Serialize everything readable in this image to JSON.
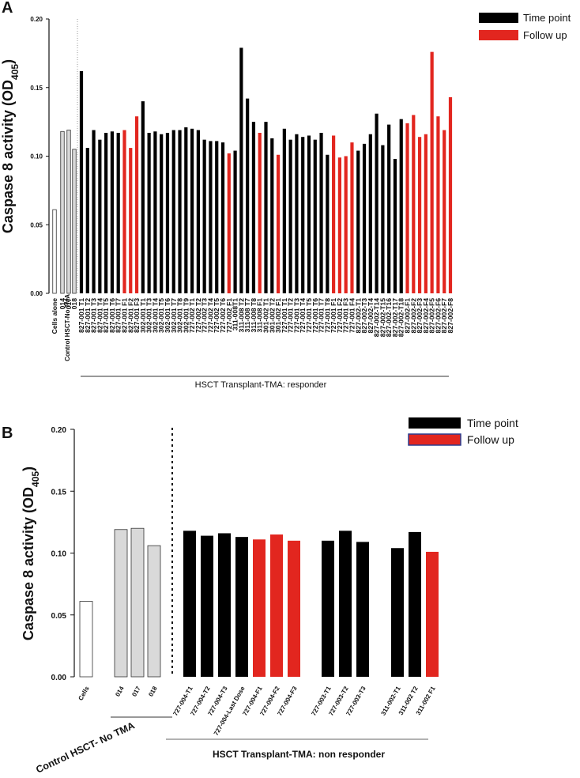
{
  "colors": {
    "time_point": "#000000",
    "follow_up": "#e2261f",
    "control": "#d9d9d9",
    "cells": "#ffffff"
  },
  "chart_data": [
    {
      "panel": "A",
      "type": "bar",
      "ylabel": "Caspase 8 activity (OD405)",
      "ylim": [
        0,
        0.2
      ],
      "yticks": [
        "0.00",
        "0.05",
        "0.10",
        "0.15",
        "0.20"
      ],
      "legend": [
        {
          "label": "Time point",
          "color": "#000000"
        },
        {
          "label": "Follow up",
          "color": "#e2261f"
        }
      ],
      "legend_position": "top-right",
      "group_labels": {
        "control": "Control HSCT-No TMA",
        "transplant": "HSCT Transplant-TMA: responder"
      },
      "bars": [
        {
          "label": "Cells alone",
          "value": 0.061,
          "kind": "cells"
        },
        {
          "label": "014",
          "value": 0.118,
          "kind": "control"
        },
        {
          "label": "017",
          "value": 0.119,
          "kind": "control"
        },
        {
          "label": "018",
          "value": 0.105,
          "kind": "control"
        },
        {
          "label": "827-001 T1",
          "value": 0.162,
          "kind": "time"
        },
        {
          "label": "827-001 T2",
          "value": 0.106,
          "kind": "time"
        },
        {
          "label": "827-001 T3",
          "value": 0.119,
          "kind": "time"
        },
        {
          "label": "827-001 T4",
          "value": 0.112,
          "kind": "time"
        },
        {
          "label": "827-001 T5",
          "value": 0.117,
          "kind": "time"
        },
        {
          "label": "827-001 T6",
          "value": 0.118,
          "kind": "time"
        },
        {
          "label": "827-001 T7",
          "value": 0.117,
          "kind": "time"
        },
        {
          "label": "827-001 F1",
          "value": 0.119,
          "kind": "follow"
        },
        {
          "label": "827-001 F2",
          "value": 0.106,
          "kind": "follow"
        },
        {
          "label": "827-001 F3",
          "value": 0.129,
          "kind": "follow"
        },
        {
          "label": "302-001 T1",
          "value": 0.14,
          "kind": "time"
        },
        {
          "label": "302-001 T3",
          "value": 0.117,
          "kind": "time"
        },
        {
          "label": "302-001 T4",
          "value": 0.118,
          "kind": "time"
        },
        {
          "label": "302-001 T5",
          "value": 0.116,
          "kind": "time"
        },
        {
          "label": "302-001 T6",
          "value": 0.117,
          "kind": "time"
        },
        {
          "label": "302-001 T7",
          "value": 0.119,
          "kind": "time"
        },
        {
          "label": "302-001 T8",
          "value": 0.119,
          "kind": "time"
        },
        {
          "label": "302-001 T9",
          "value": 0.121,
          "kind": "time"
        },
        {
          "label": "727-002 T1",
          "value": 0.12,
          "kind": "time"
        },
        {
          "label": "727-002 T2",
          "value": 0.119,
          "kind": "time"
        },
        {
          "label": "727-002 T3",
          "value": 0.112,
          "kind": "time"
        },
        {
          "label": "727-002 T4",
          "value": 0.111,
          "kind": "time"
        },
        {
          "label": "727-002 T5",
          "value": 0.111,
          "kind": "time"
        },
        {
          "label": "727-002 T6",
          "value": 0.11,
          "kind": "time"
        },
        {
          "label": "727-002 F1",
          "value": 0.102,
          "kind": "follow"
        },
        {
          "label": "311-008T1",
          "value": 0.104,
          "kind": "time"
        },
        {
          "label": "311-008 T2",
          "value": 0.179,
          "kind": "time"
        },
        {
          "label": "311-008 T7",
          "value": 0.142,
          "kind": "time"
        },
        {
          "label": "311-008 T8",
          "value": 0.125,
          "kind": "time"
        },
        {
          "label": "311-008 F1",
          "value": 0.117,
          "kind": "follow"
        },
        {
          "label": "301-002 T1",
          "value": 0.125,
          "kind": "time"
        },
        {
          "label": "301-002 T2",
          "value": 0.113,
          "kind": "time"
        },
        {
          "label": "301-002 F1",
          "value": 0.101,
          "kind": "follow"
        },
        {
          "label": "727-001 T1",
          "value": 0.12,
          "kind": "time"
        },
        {
          "label": "727-001 T2",
          "value": 0.112,
          "kind": "time"
        },
        {
          "label": "727-001 T3",
          "value": 0.116,
          "kind": "time"
        },
        {
          "label": "727-001 T4",
          "value": 0.114,
          "kind": "time"
        },
        {
          "label": "727-001 T5",
          "value": 0.115,
          "kind": "time"
        },
        {
          "label": "727-001 T6",
          "value": 0.112,
          "kind": "time"
        },
        {
          "label": "727-001 T7",
          "value": 0.117,
          "kind": "time"
        },
        {
          "label": "727-001 T8",
          "value": 0.101,
          "kind": "time"
        },
        {
          "label": "727-001 F1",
          "value": 0.115,
          "kind": "follow"
        },
        {
          "label": "727-001 F2",
          "value": 0.099,
          "kind": "follow"
        },
        {
          "label": "727-001 F3",
          "value": 0.1,
          "kind": "follow"
        },
        {
          "label": "727-001 F4",
          "value": 0.11,
          "kind": "follow"
        },
        {
          "label": "827-002-T1",
          "value": 0.104,
          "kind": "time"
        },
        {
          "label": "827-002-T3",
          "value": 0.109,
          "kind": "time"
        },
        {
          "label": "827-002-T4",
          "value": 0.116,
          "kind": "time"
        },
        {
          "label": "827-002-T14",
          "value": 0.131,
          "kind": "time"
        },
        {
          "label": "827-002-T15",
          "value": 0.108,
          "kind": "time"
        },
        {
          "label": "827-002-T16",
          "value": 0.123,
          "kind": "time"
        },
        {
          "label": "827-002-T17",
          "value": 0.098,
          "kind": "time"
        },
        {
          "label": "827-002-T18",
          "value": 0.127,
          "kind": "time"
        },
        {
          "label": "827-002-F1",
          "value": 0.124,
          "kind": "follow"
        },
        {
          "label": "827-002-F2",
          "value": 0.13,
          "kind": "follow"
        },
        {
          "label": "827-002-F3",
          "value": 0.114,
          "kind": "follow"
        },
        {
          "label": "827-002-F4",
          "value": 0.116,
          "kind": "follow"
        },
        {
          "label": "827-002-F5",
          "value": 0.176,
          "kind": "follow"
        },
        {
          "label": "827-002-F6",
          "value": 0.129,
          "kind": "follow"
        },
        {
          "label": "827-002-F7",
          "value": 0.119,
          "kind": "follow"
        },
        {
          "label": "827-002-F8",
          "value": 0.143,
          "kind": "follow"
        }
      ]
    },
    {
      "panel": "B",
      "type": "bar",
      "ylabel": "Caspase 8 activity (OD405)",
      "ylim": [
        0,
        0.2
      ],
      "yticks": [
        "0.00",
        "0.05",
        "0.10",
        "0.15",
        "0.20"
      ],
      "legend": [
        {
          "label": "Time point",
          "color": "#000000"
        },
        {
          "label": "Follow up",
          "color": "#e2261f"
        }
      ],
      "legend_position": "top-right",
      "group_labels": {
        "control": "Control HSCT- No TMA",
        "transplant": "HSCT Transplant-TMA: non responder"
      },
      "bars": [
        {
          "label": "Cells",
          "value": 0.061,
          "kind": "cells"
        },
        {
          "label": "014",
          "value": 0.119,
          "kind": "control"
        },
        {
          "label": "017",
          "value": 0.12,
          "kind": "control"
        },
        {
          "label": "018",
          "value": 0.106,
          "kind": "control"
        },
        {
          "label": "727-004-T1",
          "value": 0.118,
          "kind": "time"
        },
        {
          "label": "727-004-T2",
          "value": 0.114,
          "kind": "time"
        },
        {
          "label": "727-004-T3",
          "value": 0.116,
          "kind": "time"
        },
        {
          "label": "727-004-Last Dose",
          "value": 0.113,
          "kind": "time"
        },
        {
          "label": "727-004-F1",
          "value": 0.111,
          "kind": "follow"
        },
        {
          "label": "727-004-F2",
          "value": 0.115,
          "kind": "follow"
        },
        {
          "label": "727-004-F3",
          "value": 0.11,
          "kind": "follow"
        },
        {
          "label": "727-003-T1",
          "value": 0.11,
          "kind": "time"
        },
        {
          "label": "727-003-T2",
          "value": 0.118,
          "kind": "time"
        },
        {
          "label": "727-003-T3",
          "value": 0.109,
          "kind": "time"
        },
        {
          "label": "311-002-T1",
          "value": 0.104,
          "kind": "time"
        },
        {
          "label": "311-002 T2",
          "value": 0.117,
          "kind": "time"
        },
        {
          "label": "311-002 F1",
          "value": 0.101,
          "kind": "follow"
        }
      ]
    }
  ]
}
